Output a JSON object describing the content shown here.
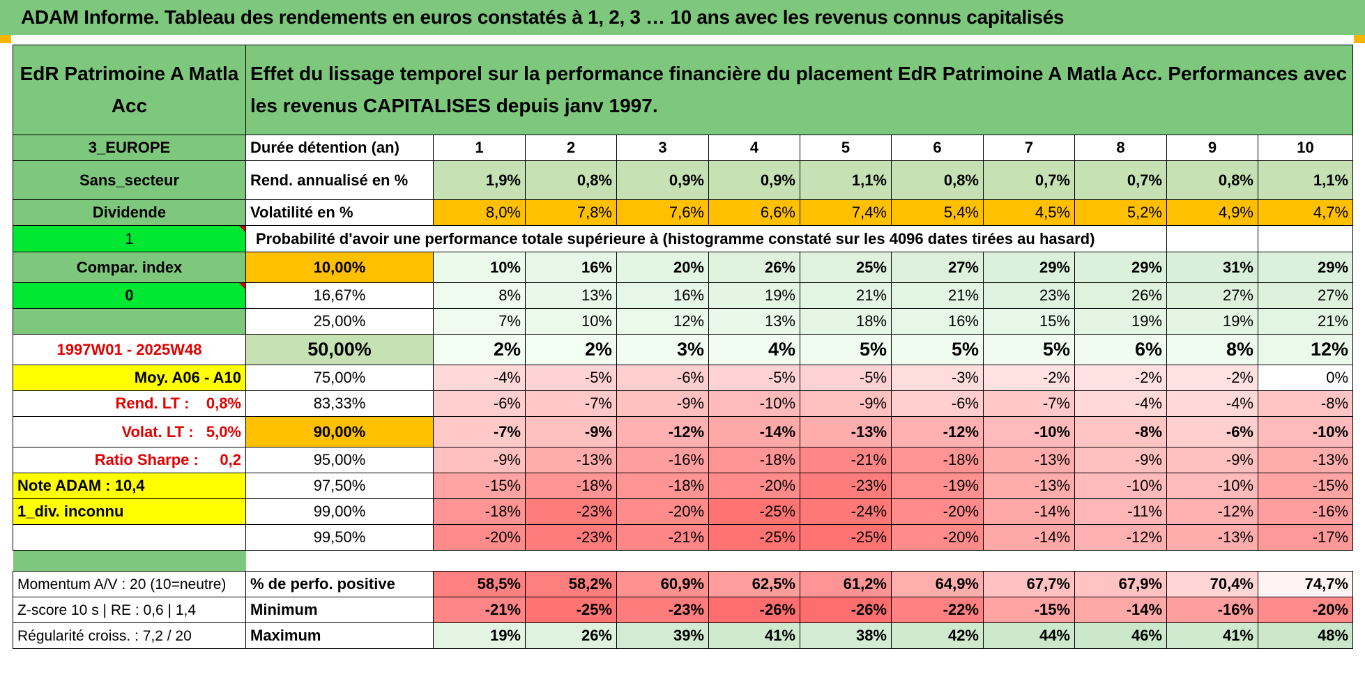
{
  "banner": "ADAM Informe. Tableau des rendements en euros constatés à 1, 2, 3 … 10 ans avec les revenus connus capitalisés",
  "header": {
    "fund_name": "EdR Patrimoine A Matla Acc",
    "description": "Effet du lissage temporel sur la performance financière du placement EdR Patrimoine A Matla Acc. Performances avec les revenus CAPITALISES depuis janv 1997."
  },
  "left_labels": {
    "region": "3_EUROPE",
    "sector": "Sans_secteur",
    "dividend": "Dividende",
    "flag1": "1",
    "compar_index": "Compar. index",
    "flag0": "0",
    "period": "1997W01 - 2025W48",
    "moy": "Moy. A06 - A10",
    "rend_lt": "Rend. LT :    0,8%",
    "volat_lt": "Volat. LT :   5,0%",
    "sharpe": "Ratio Sharpe :     0,2",
    "note": "Note ADAM : 10,4",
    "div_inconnu": "1_div. inconnu",
    "momentum": "Momentum A/V : 20 (10=neutre)",
    "zscore": "Z-score 10 s | RE : 0,6 | 1,4",
    "regularite": "Régularité croiss. : 7,2 / 20"
  },
  "table": {
    "duration_label": "Durée détention (an)",
    "durations": [
      "1",
      "2",
      "3",
      "4",
      "5",
      "6",
      "7",
      "8",
      "9",
      "10"
    ],
    "rend_label": "Rend. annualisé en %",
    "rend": [
      "1,9%",
      "0,8%",
      "0,9%",
      "0,9%",
      "1,1%",
      "0,8%",
      "0,7%",
      "0,7%",
      "0,8%",
      "1,1%"
    ],
    "vol_label": "Volatilité en %",
    "vol": [
      "8,0%",
      "7,8%",
      "7,6%",
      "6,6%",
      "7,4%",
      "5,4%",
      "4,5%",
      "5,2%",
      "4,9%",
      "4,7%"
    ],
    "prob_label": "Probabilité d'avoir une performance totale supérieure à (histogramme constaté sur les 4096 dates tirées au hasard)",
    "quantiles": [
      {
        "label": "10,00%",
        "values": [
          "10%",
          "16%",
          "20%",
          "26%",
          "25%",
          "27%",
          "29%",
          "29%",
          "31%",
          "29%"
        ]
      },
      {
        "label": "16,67%",
        "values": [
          "8%",
          "13%",
          "16%",
          "19%",
          "21%",
          "21%",
          "23%",
          "26%",
          "27%",
          "27%"
        ]
      },
      {
        "label": "25,00%",
        "values": [
          "7%",
          "10%",
          "12%",
          "13%",
          "18%",
          "16%",
          "15%",
          "19%",
          "19%",
          "21%"
        ]
      },
      {
        "label": "50,00%",
        "values": [
          "2%",
          "2%",
          "3%",
          "4%",
          "5%",
          "5%",
          "5%",
          "6%",
          "8%",
          "12%"
        ]
      },
      {
        "label": "75,00%",
        "values": [
          "-4%",
          "-5%",
          "-6%",
          "-5%",
          "-5%",
          "-3%",
          "-2%",
          "-2%",
          "-2%",
          "0%"
        ]
      },
      {
        "label": "83,33%",
        "values": [
          "-6%",
          "-7%",
          "-9%",
          "-10%",
          "-9%",
          "-6%",
          "-7%",
          "-4%",
          "-4%",
          "-8%"
        ]
      },
      {
        "label": "90,00%",
        "values": [
          "-7%",
          "-9%",
          "-12%",
          "-14%",
          "-13%",
          "-12%",
          "-10%",
          "-8%",
          "-6%",
          "-10%"
        ]
      },
      {
        "label": "95,00%",
        "values": [
          "-9%",
          "-13%",
          "-16%",
          "-18%",
          "-21%",
          "-18%",
          "-13%",
          "-9%",
          "-9%",
          "-13%"
        ]
      },
      {
        "label": "97,50%",
        "values": [
          "-15%",
          "-18%",
          "-18%",
          "-20%",
          "-23%",
          "-19%",
          "-13%",
          "-10%",
          "-10%",
          "-15%"
        ]
      },
      {
        "label": "99,00%",
        "values": [
          "-18%",
          "-23%",
          "-20%",
          "-25%",
          "-24%",
          "-20%",
          "-14%",
          "-11%",
          "-12%",
          "-16%"
        ]
      },
      {
        "label": "99,50%",
        "values": [
          "-20%",
          "-23%",
          "-21%",
          "-25%",
          "-25%",
          "-20%",
          "-14%",
          "-12%",
          "-13%",
          "-17%"
        ]
      }
    ],
    "pos_label": "% de perfo. positive",
    "pos": [
      "58,5%",
      "58,2%",
      "60,9%",
      "62,5%",
      "61,2%",
      "64,9%",
      "67,7%",
      "67,9%",
      "70,4%",
      "74,7%"
    ],
    "min_label": "Minimum",
    "min": [
      "-21%",
      "-25%",
      "-23%",
      "-26%",
      "-26%",
      "-22%",
      "-15%",
      "-14%",
      "-16%",
      "-20%"
    ],
    "max_label": "Maximum",
    "max": [
      "19%",
      "26%",
      "39%",
      "41%",
      "38%",
      "42%",
      "44%",
      "46%",
      "41%",
      "48%"
    ]
  },
  "colors": {
    "header_green": "#7ec87e",
    "light_green": "#c6e2b4",
    "orange": "#ffc000",
    "bright_green": "#00e832",
    "yellow": "#ffff00",
    "red_text": "#e00000"
  }
}
